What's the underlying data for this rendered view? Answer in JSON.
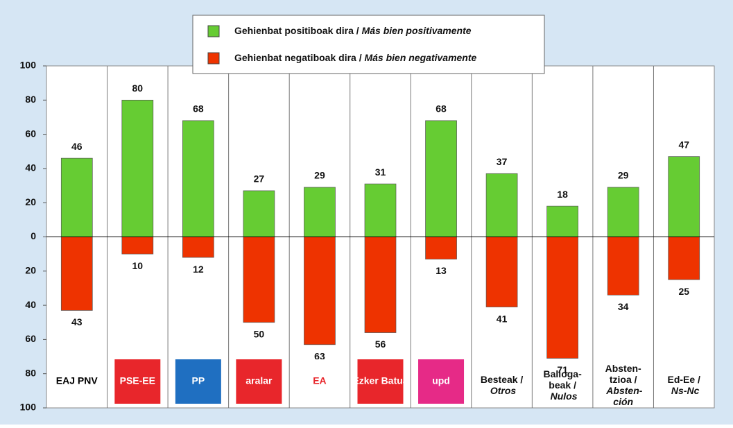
{
  "chart_data": {
    "type": "bar",
    "categories": [
      "EAJ PNV",
      "PSE-EE",
      "PP",
      "aralar",
      "EA",
      "Ezker Batua",
      "upd",
      "Besteak / Otros",
      "Balioga- beak / Nulos",
      "Absten- tzioa / Absten- ción",
      "Ed-Ee / Ns-Nc"
    ],
    "series": [
      {
        "name": "Gehienbat positiboak dira / Más bien positivamente",
        "color": "#66cc33",
        "values": [
          46,
          80,
          68,
          27,
          29,
          31,
          68,
          37,
          18,
          29,
          47
        ]
      },
      {
        "name": "Gehienbat negatiboak dira / Más bien negativamente",
        "color": "#ee3300",
        "values": [
          -43,
          -10,
          -12,
          -50,
          -63,
          -56,
          -13,
          -41,
          -71,
          -34,
          -25
        ],
        "value_labels": [
          "43",
          "10",
          "12",
          "50",
          "63",
          "56",
          "13",
          "41",
          "71",
          "34",
          "25"
        ]
      }
    ],
    "ylim": [
      -100,
      100
    ],
    "yticks": [
      {
        "value": -100,
        "label": "100"
      },
      {
        "value": -80,
        "label": "80"
      },
      {
        "value": -60,
        "label": "60"
      },
      {
        "value": -40,
        "label": "40"
      },
      {
        "value": -20,
        "label": "20"
      },
      0,
      20,
      40,
      60,
      80,
      100
    ]
  }
}
